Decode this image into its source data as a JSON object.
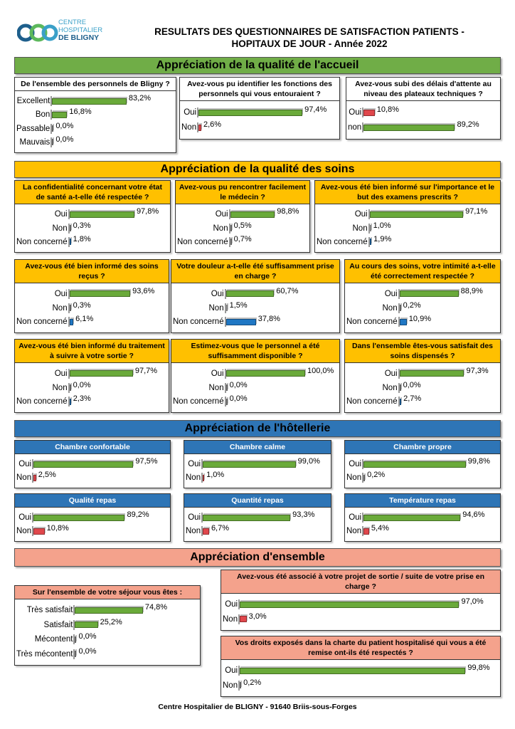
{
  "header": {
    "logo_lines": [
      "CENTRE",
      "HOSPITALIER",
      "DE BLIGNY"
    ],
    "title": [
      "RESULTATS  DES QUESTIONNAIRES DE SATISFACTION PATIENTS -",
      "HOPITAUX DE JOUR  - Année 2022"
    ]
  },
  "xlim": [
    0,
    100
  ],
  "sections": [
    {
      "title": "Appréciation de la qualité de l'accueil",
      "color": "#70ad47",
      "header_color": "#ffffff",
      "header_text": "#000000",
      "panels": [
        {
          "question": "De l'ensemble des personnels de Bligny ?",
          "categories": [
            "Excellent",
            "Bon",
            "Passable",
            "Mauvais"
          ],
          "values": [
            83.2,
            16.8,
            0.0,
            0.0
          ],
          "value_labels": [
            "83,2%",
            "16,8%",
            "0,0%",
            "0,0%"
          ],
          "colors": [
            "#6aaa3a",
            "#6aaa3a",
            "#9a9a9a",
            "#9a9a9a"
          ]
        },
        {
          "question": "Avez-vous pu identifier les fonctions des personnels qui vous entouraient ?",
          "categories": [
            "Oui",
            "Non"
          ],
          "values": [
            97.4,
            2.6
          ],
          "value_labels": [
            "97,4%",
            "2,6%"
          ],
          "colors": [
            "#6aaa3a",
            "#e0474c"
          ]
        },
        {
          "question": "Avez-vous subi des délais d'attente au niveau des plateaux techniques ?",
          "categories": [
            "Oui",
            "non"
          ],
          "values": [
            10.8,
            89.2
          ],
          "value_labels": [
            "10,8%",
            "89,2%"
          ],
          "colors": [
            "#e0474c",
            "#6aaa3a"
          ]
        }
      ]
    },
    {
      "title": "Appréciation de la qualité des soins",
      "color": "#ffc000",
      "header_color": "#ffc000",
      "header_text": "#000000",
      "panels": [
        {
          "question": "La confidentialité concernant votre état de santé a-t-elle été respectée ?",
          "categories": [
            "Oui",
            "Non",
            "Non concerné"
          ],
          "values": [
            97.8,
            0.3,
            1.8
          ],
          "value_labels": [
            "97,8%",
            "0,3%",
            "1,8%"
          ],
          "colors": [
            "#6aaa3a",
            "#9a9a9a",
            "#1f77c4"
          ]
        },
        {
          "question": "Avez-vous pu rencontrer facilement le médecin ?",
          "categories": [
            "Oui",
            "Non",
            "Non concerné"
          ],
          "values": [
            98.8,
            0.5,
            0.7
          ],
          "value_labels": [
            "98,8%",
            "0,5%",
            "0,7%"
          ],
          "colors": [
            "#6aaa3a",
            "#9a9a9a",
            "#9a9a9a"
          ]
        },
        {
          "question": "Avez-vous été bien informé sur l'importance et le but des examens prescrits ?",
          "categories": [
            "Oui",
            "Non",
            "Non concerné"
          ],
          "values": [
            97.1,
            1.0,
            1.9
          ],
          "value_labels": [
            "97,1%",
            "1,0%",
            "1,9%"
          ],
          "colors": [
            "#6aaa3a",
            "#c8c8c8",
            "#1f77c4"
          ]
        },
        {
          "question": "Avez-vous été bien informé des soins reçus ?",
          "categories": [
            "Oui",
            "Non",
            "Non concerné"
          ],
          "values": [
            93.6,
            0.3,
            6.1
          ],
          "value_labels": [
            "93,6%",
            "0,3%",
            "6,1%"
          ],
          "colors": [
            "#6aaa3a",
            "#9a9a9a",
            "#1f77c4"
          ]
        },
        {
          "question": "Votre douleur a-t-elle été suffisamment prise en charge ?",
          "categories": [
            "Oui",
            "Non",
            "Non concerné"
          ],
          "values": [
            60.7,
            1.5,
            37.8
          ],
          "value_labels": [
            "60,7%",
            "1,5%",
            "37,8%"
          ],
          "colors": [
            "#6aaa3a",
            "#c8c8c8",
            "#1f77c4"
          ]
        },
        {
          "question": "Au cours des soins, votre intimité a-t-elle été correctement respectée ?",
          "categories": [
            "Oui",
            "Non",
            "Non concerné"
          ],
          "values": [
            88.9,
            0.2,
            10.9
          ],
          "value_labels": [
            "88,9%",
            "0,2%",
            "10,9%"
          ],
          "colors": [
            "#6aaa3a",
            "#9a9a9a",
            "#1f77c4"
          ]
        },
        {
          "question": "Avez-vous été bien informé du traitement à suivre à votre sortie ?",
          "categories": [
            "Oui",
            "Non",
            "Non concerné"
          ],
          "values": [
            97.7,
            0.0,
            2.3
          ],
          "value_labels": [
            "97,7%",
            "0,0%",
            "2,3%"
          ],
          "colors": [
            "#6aaa3a",
            "#9a9a9a",
            "#1f77c4"
          ]
        },
        {
          "question": "Estimez-vous que le personnel a été suffisamment disponible ?",
          "categories": [
            "Oui",
            "Non",
            "Non concerné"
          ],
          "values": [
            100.0,
            0.0,
            0.0
          ],
          "value_labels": [
            "100,0%",
            "0,0%",
            "0,0%"
          ],
          "colors": [
            "#6aaa3a",
            "#9a9a9a",
            "#9a9a9a"
          ]
        },
        {
          "question": "Dans l'ensemble êtes-vous satisfait des soins dispensés ?",
          "categories": [
            "Oui",
            "Non",
            "Non concerné"
          ],
          "values": [
            97.3,
            0.0,
            2.7
          ],
          "value_labels": [
            "97,3%",
            "0,0%",
            "2,7%"
          ],
          "colors": [
            "#6aaa3a",
            "#9a9a9a",
            "#1f77c4"
          ]
        }
      ]
    },
    {
      "title": "Appréciation de l'hôtellerie",
      "color": "#2e75b6",
      "header_color": "#2e75b6",
      "header_text": "#ffffff",
      "panels": [
        {
          "question": "Chambre confortable",
          "categories": [
            "Oui",
            "Non"
          ],
          "values": [
            97.5,
            2.5
          ],
          "value_labels": [
            "97,5%",
            "2,5%"
          ],
          "colors": [
            "#6aaa3a",
            "#e0474c"
          ]
        },
        {
          "question": "Chambre calme",
          "categories": [
            "Oui",
            "Non"
          ],
          "values": [
            99.0,
            1.0
          ],
          "value_labels": [
            "99,0%",
            "1,0%"
          ],
          "colors": [
            "#6aaa3a",
            "#e0474c"
          ]
        },
        {
          "question": "Chambre propre",
          "categories": [
            "Oui",
            "Non"
          ],
          "values": [
            99.8,
            0.2
          ],
          "value_labels": [
            "99,8%",
            "0,2%"
          ],
          "colors": [
            "#6aaa3a",
            "#9a9a9a"
          ]
        },
        {
          "question": "Qualité repas",
          "categories": [
            "Oui",
            "Non"
          ],
          "values": [
            89.2,
            10.8
          ],
          "value_labels": [
            "89,2%",
            "10,8%"
          ],
          "colors": [
            "#6aaa3a",
            "#e0474c"
          ]
        },
        {
          "question": "Quantité repas",
          "categories": [
            "Oui",
            "Non"
          ],
          "values": [
            93.3,
            6.7
          ],
          "value_labels": [
            "93,3%",
            "6,7%"
          ],
          "colors": [
            "#6aaa3a",
            "#e0474c"
          ]
        },
        {
          "question": "Température repas",
          "categories": [
            "Oui",
            "Non"
          ],
          "values": [
            94.6,
            5.4
          ],
          "value_labels": [
            "94,6%",
            "5,4%"
          ],
          "colors": [
            "#6aaa3a",
            "#e0474c"
          ]
        }
      ]
    },
    {
      "title": "Appréciation d'ensemble",
      "color": "#f4a28c",
      "header_color": "#f4a28c",
      "header_text": "#000000",
      "panels": [
        {
          "question": "Sur l'ensemble de votre séjour vous êtes :",
          "categories": [
            "Très satisfait",
            "Satisfait",
            "Mécontent",
            "Très mécontent"
          ],
          "values": [
            74.8,
            25.2,
            0.0,
            0.0
          ],
          "value_labels": [
            "74,8%",
            "25,2%",
            "0,0%",
            "0,0%"
          ],
          "colors": [
            "#6aaa3a",
            "#6aaa3a",
            "#9a9a9a",
            "#9a9a9a"
          ]
        },
        {
          "question": "Avez-vous été associé à votre projet de sortie / suite de votre prise en charge ?",
          "categories": [
            "Oui",
            "Non"
          ],
          "values": [
            97.0,
            3.0
          ],
          "value_labels": [
            "97,0%",
            "3,0%"
          ],
          "colors": [
            "#6aaa3a",
            "#e0474c"
          ]
        },
        {
          "question": "Vos droits exposés dans la charte du patient hospitalisé qui vous a été remise ont-ils été respectés ?",
          "categories": [
            "Oui",
            "Non"
          ],
          "values": [
            99.8,
            0.2
          ],
          "value_labels": [
            "99,8%",
            "0,2%"
          ],
          "colors": [
            "#6aaa3a",
            "#9a9a9a"
          ]
        }
      ]
    }
  ],
  "footer": "Centre Hospitalier de BLIGNY - 91640 Briis-sous-Forges"
}
